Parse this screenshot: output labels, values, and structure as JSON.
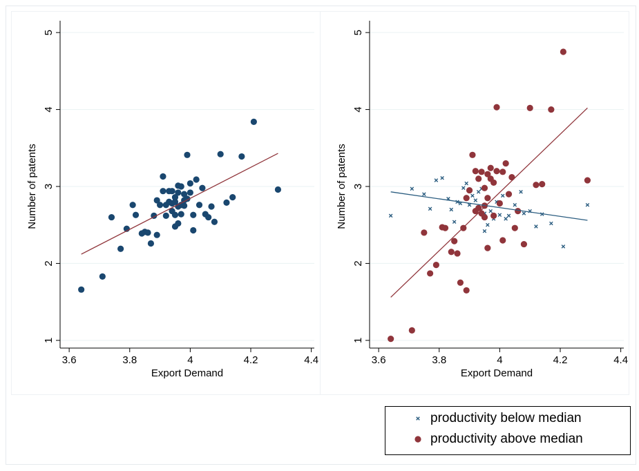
{
  "chart_data": [
    {
      "type": "scatter",
      "xlabel": "Export Demand",
      "ylabel": "Number of patents",
      "xlim": [
        3.57,
        4.41
      ],
      "ylim": [
        0.9,
        5.1
      ],
      "xticks": [
        3.6,
        3.8,
        4,
        4.2,
        4.4
      ],
      "yticks": [
        1,
        2,
        3,
        4,
        5
      ],
      "grid": true,
      "series": [
        {
          "color": "#1a476f",
          "marker": "circle",
          "x": [
            3.64,
            3.71,
            3.74,
            3.77,
            3.79,
            3.81,
            3.82,
            3.84,
            3.85,
            3.86,
            3.87,
            3.88,
            3.89,
            3.89,
            3.9,
            3.91,
            3.91,
            3.92,
            3.92,
            3.93,
            3.93,
            3.94,
            3.94,
            3.94,
            3.95,
            3.95,
            3.95,
            3.95,
            3.96,
            3.96,
            3.96,
            3.96,
            3.97,
            3.97,
            3.97,
            3.98,
            3.98,
            3.98,
            3.99,
            3.99,
            4.0,
            4.0,
            4.01,
            4.01,
            4.02,
            4.03,
            4.04,
            4.05,
            4.06,
            4.07,
            4.08,
            4.1,
            4.12,
            4.14,
            4.17,
            4.21,
            4.29
          ],
          "values": [
            1.66,
            1.83,
            2.6,
            2.19,
            2.45,
            2.76,
            2.63,
            2.39,
            2.41,
            2.4,
            2.26,
            2.62,
            2.37,
            2.82,
            2.76,
            3.13,
            2.94,
            2.76,
            2.62,
            2.94,
            2.8,
            2.94,
            2.68,
            2.78,
            2.63,
            2.86,
            2.48,
            2.8,
            3.01,
            2.52,
            2.74,
            2.92,
            3.0,
            2.64,
            2.76,
            2.75,
            2.82,
            2.9,
            3.41,
            2.84,
            2.92,
            3.04,
            2.43,
            2.63,
            3.09,
            2.76,
            2.98,
            2.64,
            2.6,
            2.74,
            2.54,
            3.42,
            2.79,
            2.86,
            3.39,
            3.84,
            2.96
          ]
        }
      ],
      "fit_lines": [
        {
          "color": "#90353b",
          "x": [
            3.64,
            4.29
          ],
          "values": [
            2.12,
            3.43
          ]
        }
      ]
    },
    {
      "type": "scatter",
      "xlabel": "Export Demand",
      "ylabel": "Number of patents",
      "xlim": [
        3.57,
        4.41
      ],
      "ylim": [
        0.9,
        5.1
      ],
      "xticks": [
        3.6,
        3.8,
        4,
        4.2,
        4.4
      ],
      "yticks": [
        1,
        2,
        3,
        4,
        5
      ],
      "grid": true,
      "legend": "below",
      "series": [
        {
          "name": "productivity below median",
          "color": "#2b5d80",
          "marker": "x",
          "x": [
            3.64,
            3.71,
            3.75,
            3.77,
            3.79,
            3.81,
            3.83,
            3.84,
            3.85,
            3.86,
            3.87,
            3.88,
            3.89,
            3.9,
            3.91,
            3.92,
            3.93,
            3.94,
            3.95,
            3.95,
            3.96,
            3.97,
            3.98,
            3.99,
            4.0,
            4.01,
            4.02,
            4.03,
            4.05,
            4.07,
            4.08,
            4.1,
            4.12,
            4.14,
            4.17,
            4.21,
            4.29
          ],
          "values": [
            2.62,
            2.97,
            2.9,
            2.71,
            3.08,
            3.11,
            2.84,
            2.7,
            2.54,
            2.8,
            2.78,
            2.98,
            3.04,
            2.76,
            2.88,
            2.82,
            2.93,
            2.97,
            2.65,
            2.42,
            2.5,
            2.68,
            2.58,
            2.8,
            2.63,
            2.88,
            2.58,
            2.62,
            2.76,
            2.93,
            2.65,
            2.68,
            2.48,
            2.64,
            2.52,
            2.22,
            2.76
          ]
        },
        {
          "name": "productivity above median",
          "color": "#90353b",
          "marker": "circle",
          "x": [
            3.64,
            3.71,
            3.75,
            3.77,
            3.79,
            3.81,
            3.82,
            3.84,
            3.85,
            3.86,
            3.87,
            3.88,
            3.89,
            3.89,
            3.9,
            3.91,
            3.92,
            3.92,
            3.93,
            3.93,
            3.94,
            3.94,
            3.95,
            3.95,
            3.95,
            3.96,
            3.96,
            3.96,
            3.97,
            3.97,
            3.98,
            3.98,
            3.99,
            3.99,
            4.0,
            4.01,
            4.01,
            4.02,
            4.03,
            4.04,
            4.05,
            4.06,
            4.08,
            4.1,
            4.12,
            4.14,
            4.17,
            4.21,
            4.29
          ],
          "values": [
            1.02,
            1.13,
            2.4,
            1.87,
            1.98,
            2.47,
            2.46,
            2.15,
            2.29,
            2.13,
            1.75,
            2.46,
            1.65,
            2.85,
            2.95,
            3.41,
            3.2,
            2.68,
            2.72,
            3.1,
            3.19,
            2.65,
            2.75,
            2.98,
            2.6,
            2.85,
            2.2,
            3.16,
            3.1,
            3.24,
            2.62,
            3.05,
            4.03,
            3.2,
            2.78,
            2.3,
            3.19,
            3.3,
            2.9,
            3.12,
            2.46,
            2.68,
            2.25,
            4.02,
            3.02,
            3.03,
            4.0,
            4.75,
            3.08
          ]
        }
      ],
      "fit_lines": [
        {
          "color": "#2b5d80",
          "x": [
            3.64,
            4.29
          ],
          "values": [
            2.93,
            2.56
          ]
        },
        {
          "color": "#90353b",
          "x": [
            3.64,
            4.29
          ],
          "values": [
            1.56,
            4.02
          ]
        }
      ]
    }
  ]
}
